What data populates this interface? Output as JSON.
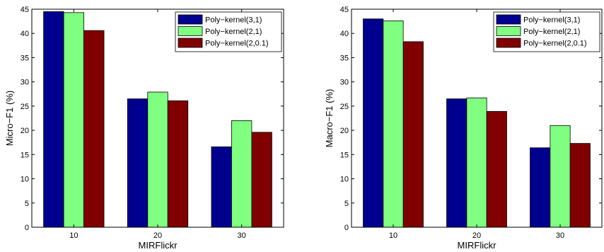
{
  "chart_data": [
    {
      "type": "bar",
      "xlabel": "MIRFlickr",
      "ylabel": "Micro−F1 (%)",
      "categories": [
        "10",
        "20",
        "30"
      ],
      "ylim": [
        0,
        45
      ],
      "yticks": [
        "0",
        "5",
        "10",
        "15",
        "20",
        "25",
        "30",
        "35",
        "40",
        "45"
      ],
      "legend_position": "top-right",
      "series": [
        {
          "name": "Poly−kernel(3,1)",
          "color": "#00008f",
          "values": [
            44.5,
            26.5,
            16.6
          ]
        },
        {
          "name": "Poly−kernel(2,1)",
          "color": "#80ff80",
          "values": [
            44.3,
            27.9,
            22.0
          ]
        },
        {
          "name": "Poly−kernel(2,0.1)",
          "color": "#800000",
          "values": [
            40.6,
            26.1,
            19.6
          ]
        }
      ]
    },
    {
      "type": "bar",
      "xlabel": "MIRFlickr",
      "ylabel": "Macro−F1 (%)",
      "categories": [
        "10",
        "20",
        "30"
      ],
      "ylim": [
        0,
        45
      ],
      "yticks": [
        "0",
        "5",
        "10",
        "15",
        "20",
        "25",
        "30",
        "35",
        "40",
        "45"
      ],
      "legend_position": "top-right",
      "series": [
        {
          "name": "Poly−kernel(3,1)",
          "color": "#00008f",
          "values": [
            43.0,
            26.5,
            16.4
          ]
        },
        {
          "name": "Poly−kernel(2,1)",
          "color": "#80ff80",
          "values": [
            42.6,
            26.7,
            21.0
          ]
        },
        {
          "name": "Poly−kernel(2,0.1)",
          "color": "#800000",
          "values": [
            38.3,
            23.9,
            17.3
          ]
        }
      ]
    }
  ]
}
